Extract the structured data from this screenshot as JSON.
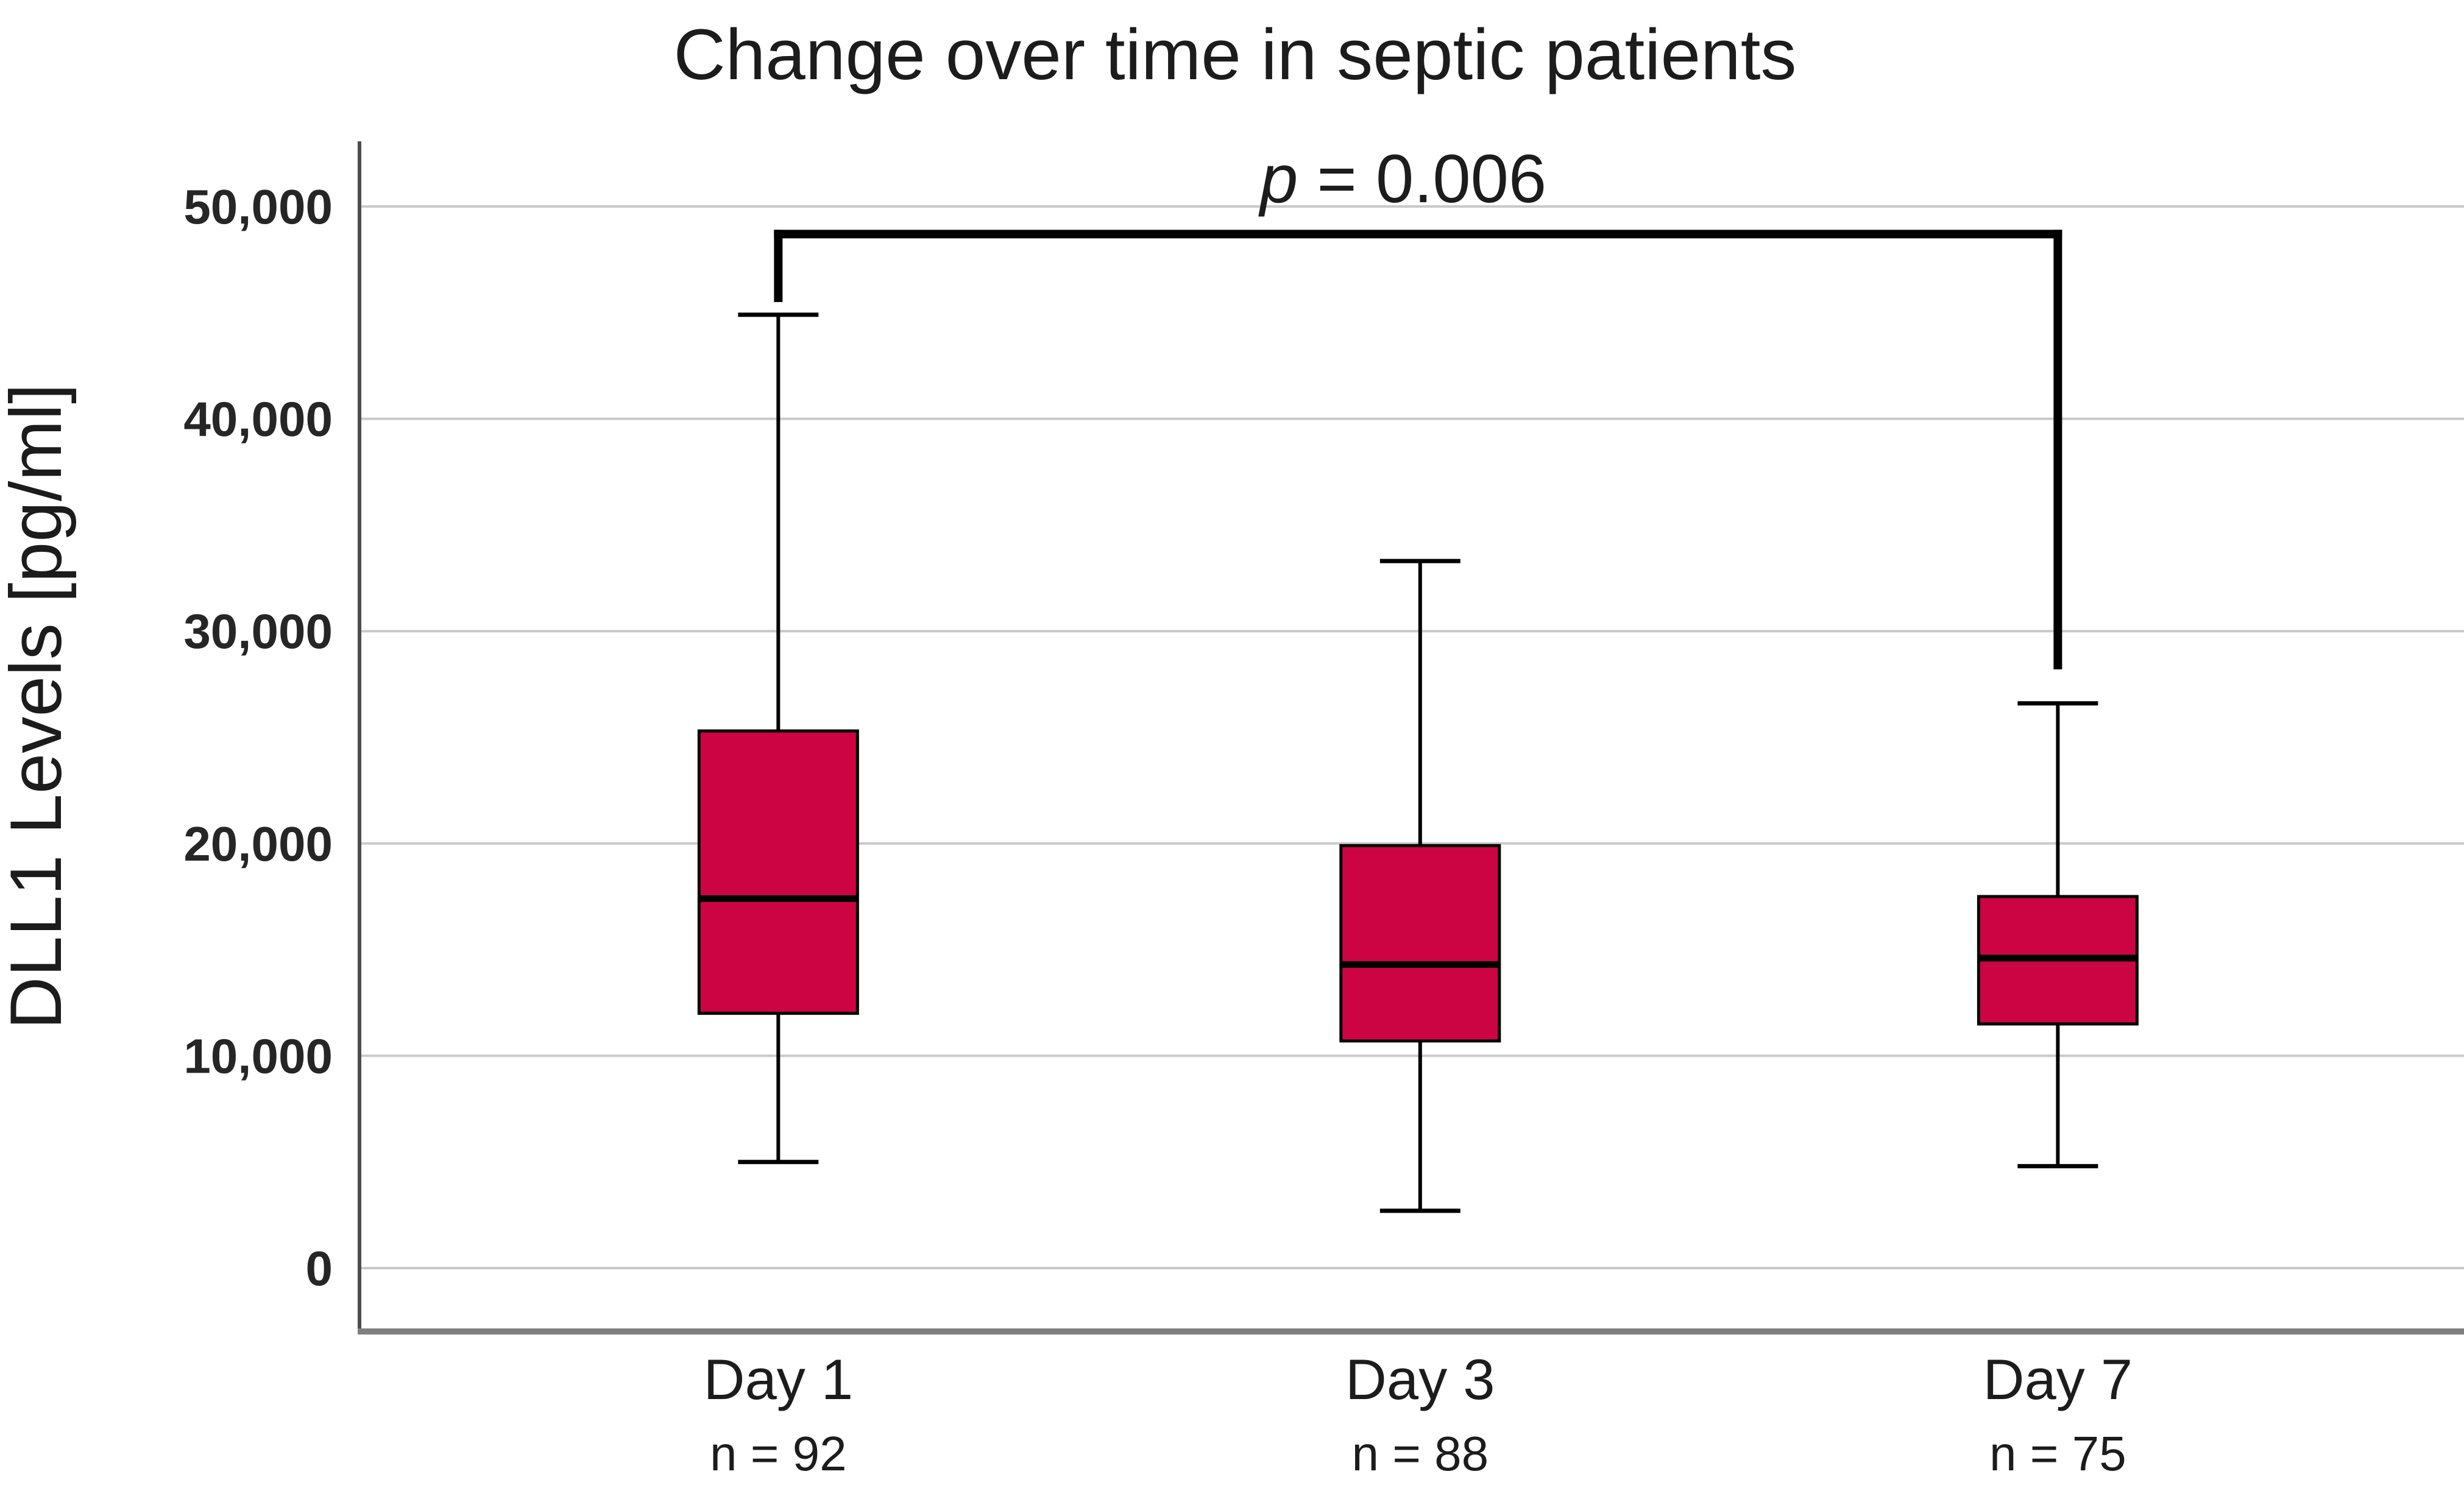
{
  "page": {
    "background": "#ffffff"
  },
  "chart_data": {
    "type": "boxplot",
    "title": "Change over time in septic patients",
    "ylabel": "DLL1 Levels [pg/ml]",
    "xlabel": "",
    "ylim": [
      0,
      53000
    ],
    "grid": "horizontal",
    "legend": "none",
    "yticks": [
      {
        "value": 50000,
        "label": "50,000"
      },
      {
        "value": 40000,
        "label": "40,000"
      },
      {
        "value": 30000,
        "label": "30,000"
      },
      {
        "value": 20000,
        "label": "20,000"
      },
      {
        "value": 10000,
        "label": "10,000"
      },
      {
        "value": 0,
        "label": "0"
      }
    ],
    "series": [
      {
        "category": "Day 1",
        "n_label": "n = 92",
        "n": 92,
        "whisker_low": 5000,
        "q1": 12000,
        "median": 17400,
        "q3": 25300,
        "whisker_high": 44900
      },
      {
        "category": "Day 3",
        "n_label": "n = 88",
        "n": 88,
        "whisker_low": 2700,
        "q1": 10700,
        "median": 14300,
        "q3": 19900,
        "whisker_high": 33300
      },
      {
        "category": "Day 7",
        "n_label": "n = 75",
        "n": 75,
        "whisker_low": 4800,
        "q1": 11500,
        "median": 14600,
        "q3": 17500,
        "whisker_high": 26600
      }
    ],
    "significance": {
      "label_p": "p",
      "label_rest": " = 0.006",
      "from_index": 0,
      "to_index": 2,
      "bar_value": 48700,
      "left_tip_value": 45500,
      "right_tip_value": 28200
    },
    "colors": {
      "box_fill": "#CC0443",
      "box_stroke": "#000000",
      "median": "#000000",
      "whisker": "#000000",
      "grid": "#c9c9c9",
      "axis_left": "#4d4d4d",
      "axis_bottom": "#7f7f7f",
      "bracket": "#000000",
      "text": "#1c1c1c",
      "tick_text": "#262626"
    }
  }
}
